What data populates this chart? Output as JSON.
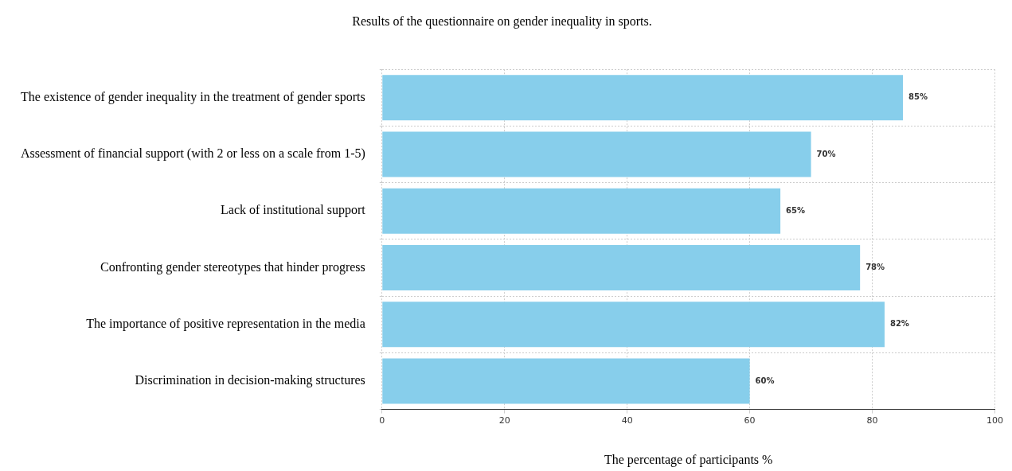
{
  "chart_data": {
    "type": "bar",
    "orientation": "horizontal",
    "title": "Results of the questionnaire on gender inequality in sports.",
    "xlabel": "The percentage of participants %",
    "categories": [
      "The existence of gender inequality in the treatment of gender sports",
      "Assessment of financial support (with 2 or less on a scale from 1-5)",
      "Lack of institutional support",
      "Confronting gender stereotypes that hinder progress",
      "The importance of positive representation in the media",
      "Discrimination in decision-making structures"
    ],
    "values": [
      85,
      70,
      65,
      78,
      82,
      60
    ],
    "value_labels": [
      "85%",
      "70%",
      "65%",
      "78%",
      "82%",
      "60%"
    ],
    "color": "#87ceeb",
    "xlim": [
      0,
      100
    ],
    "xticks": [
      0,
      20,
      40,
      60,
      80,
      100
    ],
    "grid": true,
    "legend": false
  }
}
